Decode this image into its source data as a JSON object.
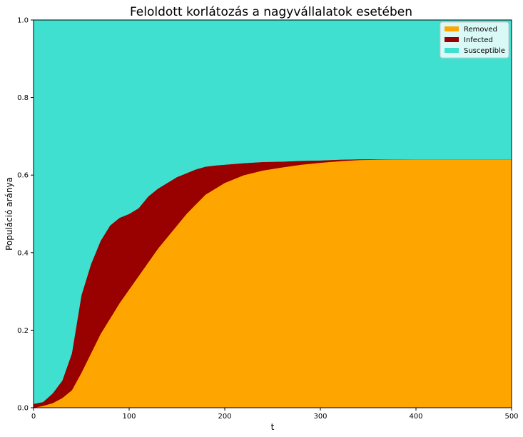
{
  "chart_data": {
    "type": "area",
    "stacked": true,
    "title": "Feloldott korlátozás a nagyvállalatok esetében",
    "xlabel": "t",
    "ylabel": "Populáció aránya",
    "xlim": [
      0,
      500
    ],
    "ylim": [
      0,
      1.0
    ],
    "xticks": [
      "0",
      "100",
      "200",
      "300",
      "400",
      "500"
    ],
    "yticks": [
      "0.0",
      "0.2",
      "0.4",
      "0.6",
      "0.8",
      "1.0"
    ],
    "grid": false,
    "legend_position": "top-right",
    "x": [
      0,
      10,
      20,
      30,
      40,
      50,
      60,
      70,
      80,
      90,
      100,
      110,
      120,
      130,
      140,
      150,
      160,
      170,
      180,
      190,
      200,
      220,
      240,
      260,
      280,
      300,
      320,
      340,
      360,
      400,
      450,
      500
    ],
    "series": [
      {
        "name": "Removed",
        "color": "#ffa500",
        "values": [
          0.0,
          0.005,
          0.012,
          0.025,
          0.045,
          0.09,
          0.14,
          0.19,
          0.23,
          0.27,
          0.305,
          0.34,
          0.375,
          0.41,
          0.44,
          0.47,
          0.5,
          0.525,
          0.55,
          0.565,
          0.58,
          0.6,
          0.612,
          0.62,
          0.627,
          0.632,
          0.636,
          0.639,
          0.64,
          0.641,
          0.641,
          0.641
        ]
      },
      {
        "name": "Infected",
        "color": "#990000",
        "values": [
          0.01,
          0.01,
          0.025,
          0.045,
          0.095,
          0.2,
          0.23,
          0.24,
          0.24,
          0.22,
          0.195,
          0.175,
          0.17,
          0.155,
          0.14,
          0.125,
          0.105,
          0.09,
          0.072,
          0.06,
          0.047,
          0.031,
          0.022,
          0.015,
          0.01,
          0.006,
          0.004,
          0.002,
          0.001,
          0.0,
          0.0,
          0.0
        ]
      },
      {
        "name": "Susceptible",
        "color": "#40e0d0",
        "values": [
          0.99,
          0.985,
          0.963,
          0.93,
          0.86,
          0.71,
          0.63,
          0.57,
          0.53,
          0.51,
          0.5,
          0.485,
          0.455,
          0.435,
          0.42,
          0.405,
          0.395,
          0.385,
          0.378,
          0.375,
          0.373,
          0.369,
          0.366,
          0.365,
          0.363,
          0.362,
          0.36,
          0.359,
          0.359,
          0.359,
          0.359,
          0.359
        ]
      }
    ],
    "legend_order": [
      "Removed",
      "Infected",
      "Susceptible"
    ]
  }
}
